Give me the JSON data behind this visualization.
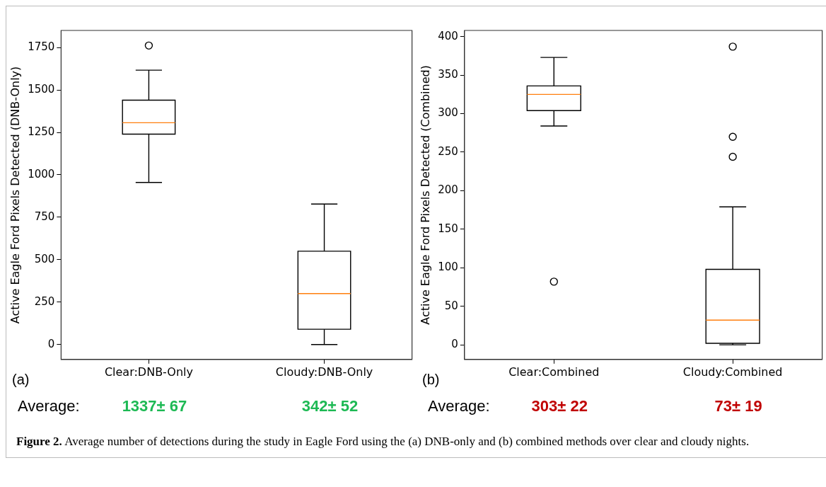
{
  "chart_data": [
    {
      "type": "box",
      "ylabel": "Active Eagle Ford Pixels Detected (DNB-Only)",
      "categories": [
        "Clear:DNB-Only",
        "Cloudy:DNB-Only"
      ],
      "boxes": [
        {
          "low": 955,
          "q1": 1240,
          "median": 1307,
          "q3": 1440,
          "high": 1617,
          "outliers": [
            1762
          ]
        },
        {
          "low": 0,
          "q1": 90,
          "median": 300,
          "q3": 550,
          "high": 828
        }
      ],
      "ylim": [
        -88,
        1851
      ],
      "yticks": [
        0,
        250,
        500,
        750,
        1000,
        1250,
        1500,
        1750
      ],
      "grid": false,
      "legend": false,
      "marker": "circle",
      "annotations": [
        "(a)",
        "Average:",
        "1337± 67",
        "342± 52"
      ]
    },
    {
      "type": "box",
      "ylabel": "Active Eagle Ford Pixels Detected (Combined)",
      "categories": [
        "Clear:Combined",
        "Cloudy:Combined"
      ],
      "boxes": [
        {
          "low": 284,
          "q1": 304,
          "median": 325,
          "q3": 336,
          "high": 373,
          "outliers": [
            82
          ]
        },
        {
          "low": 0,
          "q1": 2,
          "median": 32,
          "q3": 98,
          "high": 179,
          "outliers": [
            244,
            270,
            387
          ]
        }
      ],
      "ylim": [
        -19,
        408
      ],
      "yticks": [
        0,
        50,
        100,
        150,
        200,
        250,
        300,
        350,
        400
      ],
      "grid": false,
      "legend": false,
      "marker": "circle",
      "annotations": [
        "(b)",
        "Average:",
        "303± 22",
        "73± 19",
        "Figure 2. Average number of detections during the study in Eagle Ford using the (a) DNB-only and (b) combined methods over clear and cloudy nights."
      ]
    }
  ]
}
